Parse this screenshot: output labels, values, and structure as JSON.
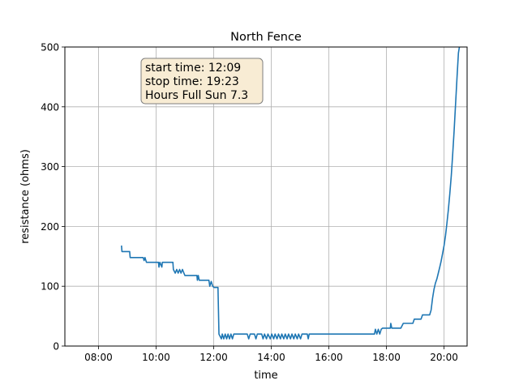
{
  "chart_data": {
    "type": "line",
    "title": "North Fence",
    "xlabel": "time",
    "ylabel": "resistance (ohms)",
    "xlim": [
      "06:50",
      "20:48"
    ],
    "ylim": [
      0,
      500
    ],
    "x_ticks": [
      "08:00",
      "10:00",
      "12:00",
      "14:00",
      "16:00",
      "18:00",
      "20:00"
    ],
    "y_ticks": [
      0,
      100,
      200,
      300,
      400,
      500
    ],
    "grid": true,
    "line_color": "#1f77b4",
    "annotation": {
      "lines": [
        "start time: 12:09",
        "stop time: 19:23",
        "Hours Full Sun 7.3"
      ],
      "facecolor": "#f8ecd4",
      "edgecolor": "#7f7f7f"
    },
    "series": [
      {
        "points": [
          [
            "08:48",
            168
          ],
          [
            "08:49",
            158
          ],
          [
            "09:05",
            158
          ],
          [
            "09:06",
            148
          ],
          [
            "09:33",
            148
          ],
          [
            "09:35",
            143
          ],
          [
            "09:37",
            148
          ],
          [
            "09:40",
            140
          ],
          [
            "10:05",
            140
          ],
          [
            "10:06",
            132
          ],
          [
            "10:08",
            140
          ],
          [
            "10:12",
            132
          ],
          [
            "10:13",
            140
          ],
          [
            "10:35",
            140
          ],
          [
            "10:36",
            128
          ],
          [
            "10:40",
            122
          ],
          [
            "10:43",
            128
          ],
          [
            "10:46",
            122
          ],
          [
            "10:49",
            128
          ],
          [
            "10:52",
            122
          ],
          [
            "10:55",
            128
          ],
          [
            "10:58",
            122
          ],
          [
            "11:00",
            118
          ],
          [
            "11:25",
            118
          ],
          [
            "11:26",
            110
          ],
          [
            "11:28",
            118
          ],
          [
            "11:30",
            110
          ],
          [
            "11:50",
            110
          ],
          [
            "11:52",
            100
          ],
          [
            "11:55",
            108
          ],
          [
            "11:58",
            100
          ],
          [
            "12:01",
            98
          ],
          [
            "12:09",
            98
          ],
          [
            "12:11",
            20
          ],
          [
            "12:16",
            12
          ],
          [
            "12:18",
            20
          ],
          [
            "12:21",
            12
          ],
          [
            "12:24",
            20
          ],
          [
            "12:27",
            12
          ],
          [
            "12:30",
            20
          ],
          [
            "12:33",
            12
          ],
          [
            "12:36",
            20
          ],
          [
            "12:39",
            12
          ],
          [
            "12:42",
            20
          ],
          [
            "13:10",
            20
          ],
          [
            "13:13",
            12
          ],
          [
            "13:16",
            20
          ],
          [
            "13:25",
            20
          ],
          [
            "13:28",
            12
          ],
          [
            "13:31",
            20
          ],
          [
            "13:40",
            20
          ],
          [
            "13:43",
            12
          ],
          [
            "13:46",
            20
          ],
          [
            "13:50",
            12
          ],
          [
            "13:53",
            20
          ],
          [
            "13:58",
            12
          ],
          [
            "14:01",
            20
          ],
          [
            "14:05",
            12
          ],
          [
            "14:08",
            20
          ],
          [
            "14:12",
            12
          ],
          [
            "14:15",
            20
          ],
          [
            "14:19",
            12
          ],
          [
            "14:22",
            20
          ],
          [
            "14:26",
            12
          ],
          [
            "14:29",
            20
          ],
          [
            "14:33",
            12
          ],
          [
            "14:36",
            20
          ],
          [
            "14:40",
            12
          ],
          [
            "14:43",
            20
          ],
          [
            "14:47",
            12
          ],
          [
            "14:50",
            20
          ],
          [
            "14:54",
            12
          ],
          [
            "14:57",
            20
          ],
          [
            "15:01",
            12
          ],
          [
            "15:04",
            20
          ],
          [
            "15:15",
            20
          ],
          [
            "15:17",
            12
          ],
          [
            "15:19",
            20
          ],
          [
            "17:35",
            20
          ],
          [
            "17:37",
            28
          ],
          [
            "17:40",
            20
          ],
          [
            "17:43",
            28
          ],
          [
            "17:46",
            20
          ],
          [
            "17:49",
            28
          ],
          [
            "17:52",
            30
          ],
          [
            "18:08",
            30
          ],
          [
            "18:09",
            38
          ],
          [
            "18:11",
            30
          ],
          [
            "18:30",
            30
          ],
          [
            "18:35",
            38
          ],
          [
            "18:55",
            38
          ],
          [
            "18:58",
            45
          ],
          [
            "19:12",
            45
          ],
          [
            "19:15",
            52
          ],
          [
            "19:30",
            52
          ],
          [
            "19:33",
            60
          ],
          [
            "19:36",
            80
          ],
          [
            "19:39",
            95
          ],
          [
            "19:42",
            105
          ],
          [
            "19:45",
            112
          ],
          [
            "19:48",
            122
          ],
          [
            "19:51",
            132
          ],
          [
            "19:54",
            142
          ],
          [
            "19:57",
            155
          ],
          [
            "20:00",
            168
          ],
          [
            "20:03",
            185
          ],
          [
            "20:06",
            205
          ],
          [
            "20:09",
            228
          ],
          [
            "20:12",
            255
          ],
          [
            "20:15",
            285
          ],
          [
            "20:18",
            320
          ],
          [
            "20:21",
            360
          ],
          [
            "20:24",
            405
          ],
          [
            "20:27",
            450
          ],
          [
            "20:30",
            490
          ],
          [
            "20:32",
            500
          ]
        ]
      }
    ]
  }
}
